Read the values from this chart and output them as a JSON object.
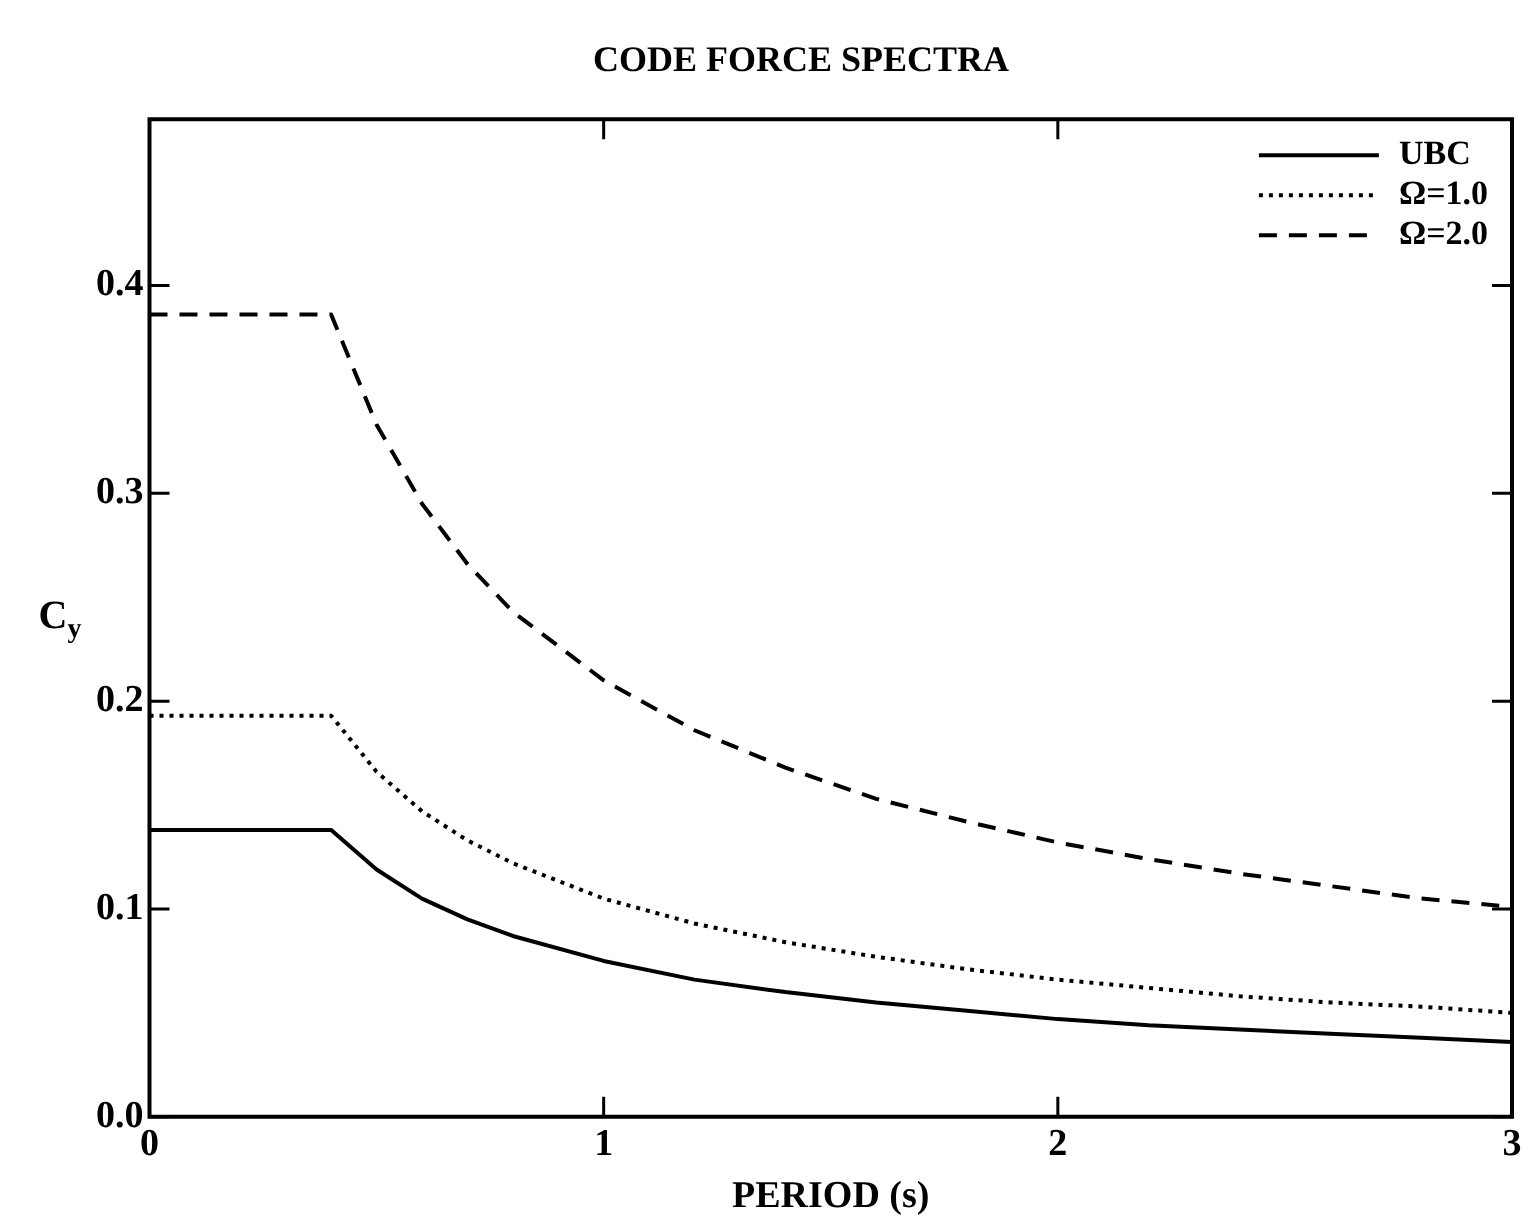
{
  "chart_data": {
    "type": "line",
    "title": "CODE FORCE SPECTRA",
    "xlabel": "PERIOD (s)",
    "ylabel": "C$_{y}$",
    "x": [
      0,
      0.4,
      0.5,
      0.6,
      0.7,
      0.8,
      1.0,
      1.2,
      1.4,
      1.6,
      1.8,
      2.0,
      2.2,
      2.4,
      2.6,
      2.8,
      3.0
    ],
    "series": [
      {
        "name": "UBC",
        "color": "#000000",
        "line_style": "solid",
        "values": [
          0.138,
          0.138,
          0.119,
          0.105,
          0.095,
          0.087,
          0.075,
          0.066,
          0.06,
          0.055,
          0.051,
          0.047,
          0.044,
          0.042,
          0.04,
          0.038,
          0.036
        ]
      },
      {
        "name": "Ω=1.0",
        "color": "#000000",
        "line_style": "dotted",
        "values": [
          0.193,
          0.193,
          0.166,
          0.147,
          0.133,
          0.122,
          0.105,
          0.093,
          0.084,
          0.077,
          0.071,
          0.066,
          0.062,
          0.058,
          0.055,
          0.053,
          0.05
        ]
      },
      {
        "name": "Ω=2.0",
        "color": "#000000",
        "line_style": "dashed",
        "values": [
          0.386,
          0.386,
          0.333,
          0.295,
          0.266,
          0.243,
          0.21,
          0.186,
          0.168,
          0.153,
          0.142,
          0.132,
          0.124,
          0.117,
          0.111,
          0.105,
          0.101
        ]
      }
    ],
    "xlim": [
      0,
      3
    ],
    "xticks": [
      0,
      1,
      2,
      3
    ],
    "ylim": [
      0,
      0.48
    ],
    "yticks": [
      {
        "value": 0,
        "label": "0.0"
      },
      {
        "value": 0.1,
        "label": "0.1"
      },
      {
        "value": 0.2,
        "label": "0.2"
      },
      {
        "value": 0.3,
        "label": "0.3"
      },
      {
        "value": 0.4,
        "label": "0.4"
      }
    ],
    "grid": false,
    "legend": "top right",
    "marker": "none"
  }
}
